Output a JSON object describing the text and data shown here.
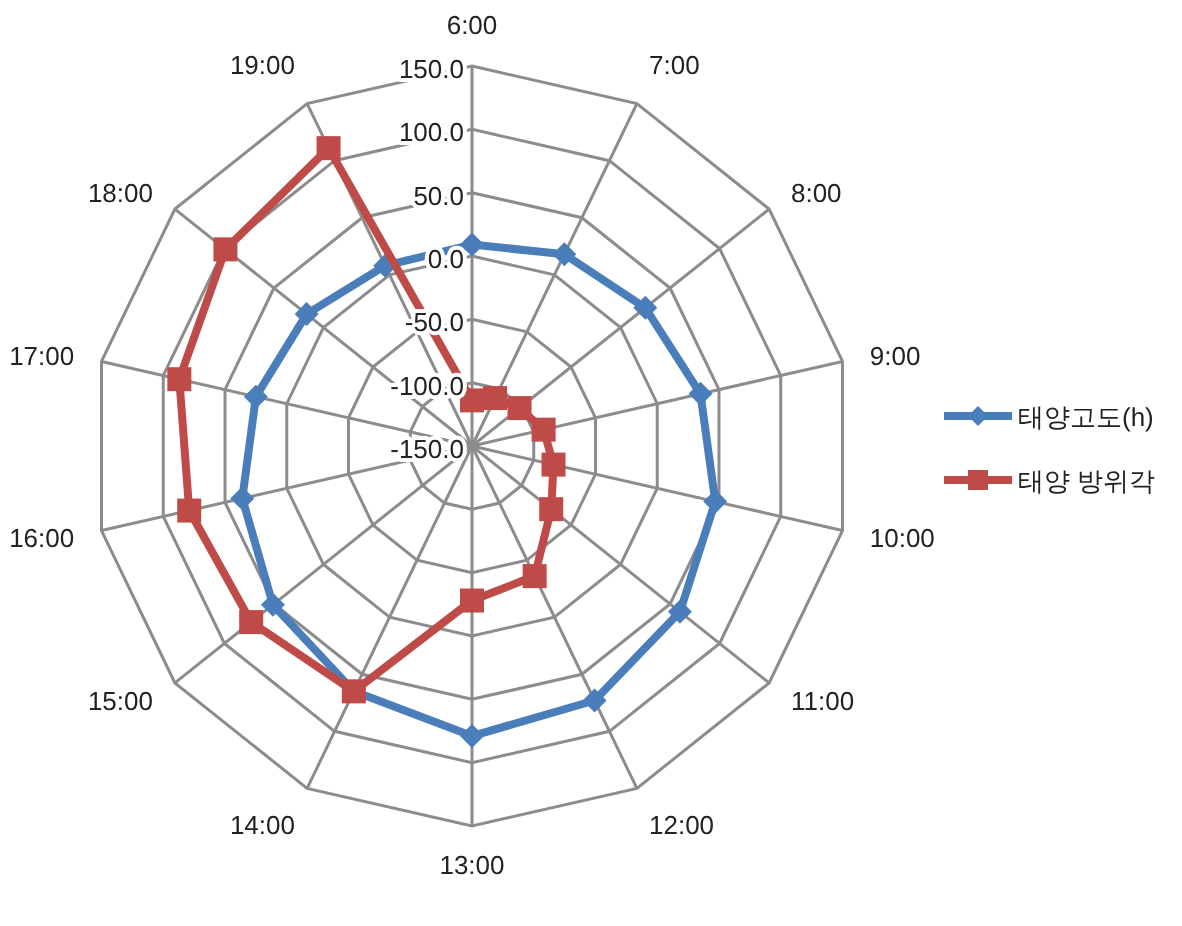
{
  "chart_data": {
    "type": "radar",
    "categories": [
      "6:00",
      "7:00",
      "8:00",
      "9:00",
      "10:00",
      "11:00",
      "12:00",
      "13:00",
      "14:00",
      "15:00",
      "16:00",
      "17:00",
      "18:00",
      "19:00"
    ],
    "ylim": [
      -150,
      150
    ],
    "yticks": [
      {
        "value": -150,
        "label": "-150.0"
      },
      {
        "value": -100,
        "label": "-100.0"
      },
      {
        "value": -50,
        "label": "-50.0"
      },
      {
        "value": 0,
        "label": "0.0"
      },
      {
        "value": 50,
        "label": "50.0"
      },
      {
        "value": 100,
        "label": "100.0"
      },
      {
        "value": 150,
        "label": "150.0"
      }
    ],
    "grid": true,
    "legend": "right",
    "series": [
      {
        "name": "태양고도(h)",
        "color": "#4a7ebb",
        "marker": "diamond",
        "values": [
          9,
          18,
          25,
          35,
          47,
          60,
          73,
          79,
          65,
          51,
          36,
          25,
          17,
          8
        ]
      },
      {
        "name": "태양 방위각",
        "color": "#be4b48",
        "marker": "square",
        "values": [
          -114,
          -108,
          -102,
          -92,
          -84,
          -70,
          -36,
          -28,
          65,
          73,
          79,
          87,
          99,
          111
        ]
      }
    ]
  }
}
